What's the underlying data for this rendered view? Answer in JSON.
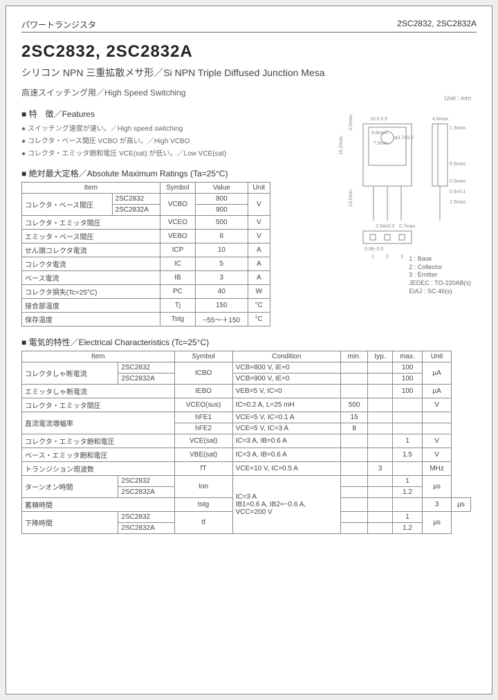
{
  "header": {
    "left": "パワートランジスタ",
    "right": "2SC2832, 2SC2832A"
  },
  "title": "2SC2832, 2SC2832A",
  "subtitle": "シリコン NPN 三重拡散メサ形／Si NPN Triple Diffused Junction Mesa",
  "application": "高速スイッチング用／High Speed Switching",
  "unit_note": "Unit : mm",
  "features_head": "特　徴／Features",
  "features": [
    "スイッチング速度が速い。／High speed switching",
    "コレクタ・ベース間圧 VCBO が高い。／High VCBO",
    "コレクタ・エミッタ飽和電圧 VCE(sat) が低い。／Low VCE(sat)"
  ],
  "ratings_head": "絶対最大定格／Absolute Maximum Ratings (Ta=25°C)",
  "ratings": {
    "cols": [
      "Item",
      "Symbol",
      "Value",
      "Unit"
    ],
    "rows": [
      {
        "item": "コレクタ・ベース間圧",
        "sub": "2SC2832",
        "symbol": "VCBO",
        "value": "800",
        "unit": "V",
        "span_item": 2,
        "span_symbol": 2,
        "span_unit": 2
      },
      {
        "item": "",
        "sub": "2SC2832A",
        "symbol": "",
        "value": "900",
        "unit": ""
      },
      {
        "item": "コレクタ・エミッタ間圧",
        "sub": "",
        "symbol": "VCEO",
        "value": "500",
        "unit": "V"
      },
      {
        "item": "エミッタ・ベース間圧",
        "sub": "",
        "symbol": "VEBO",
        "value": "8",
        "unit": "V"
      },
      {
        "item": "せん頭コレクタ電流",
        "sub": "",
        "symbol": "ICP",
        "value": "10",
        "unit": "A"
      },
      {
        "item": "コレクタ電流",
        "sub": "",
        "symbol": "IC",
        "value": "5",
        "unit": "A"
      },
      {
        "item": "ベース電流",
        "sub": "",
        "symbol": "IB",
        "value": "3",
        "unit": "A"
      },
      {
        "item": "コレクタ損失(Tc=25°C)",
        "sub": "",
        "symbol": "PC",
        "value": "40",
        "unit": "W"
      },
      {
        "item": "接合部温度",
        "sub": "",
        "symbol": "Tj",
        "value": "150",
        "unit": "°C"
      },
      {
        "item": "保存温度",
        "sub": "",
        "symbol": "Tstg",
        "value": "−55〜＋150",
        "unit": "°C"
      }
    ]
  },
  "elec_head": "電気的特性／Electrical Characteristics (Tc=25°C)",
  "elec": {
    "cols": [
      "Item",
      "Symbol",
      "Condition",
      "min.",
      "typ.",
      "max.",
      "Unit"
    ],
    "rows": [
      {
        "item": "コレクタしゃ断電流",
        "sub": "2SC2832",
        "symbol": "ICBO",
        "cond": "VCB=800 V, IE=0",
        "min": "",
        "typ": "",
        "max": "100",
        "unit": "µA",
        "span_item": 2,
        "span_symbol": 2,
        "span_unit": 2
      },
      {
        "item": "",
        "sub": "2SC2832A",
        "symbol": "",
        "cond": "VCB=900 V, IE=0",
        "min": "",
        "typ": "",
        "max": "100",
        "unit": ""
      },
      {
        "item": "エミッタしゃ断電流",
        "sub": "",
        "symbol": "IEBO",
        "cond": "VEB=5 V, IC=0",
        "min": "",
        "typ": "",
        "max": "100",
        "unit": "µA"
      },
      {
        "item": "コレクタ・エミッタ間圧",
        "sub": "",
        "symbol": "VCEO(sus)",
        "cond": "IC=0.2 A, L=25 mH",
        "min": "500",
        "typ": "",
        "max": "",
        "unit": "V"
      },
      {
        "item": "直流電流増幅率",
        "sub": "",
        "symbol": "hFE1",
        "cond": "VCE=5 V, IC=0.1 A",
        "min": "15",
        "typ": "",
        "max": "",
        "unit": "",
        "span_item": 2
      },
      {
        "item": "",
        "sub": "",
        "symbol": "hFE2",
        "cond": "VCE=5 V, IC=3 A",
        "min": "8",
        "typ": "",
        "max": "",
        "unit": ""
      },
      {
        "item": "コレクタ・エミッタ飽和電圧",
        "sub": "",
        "symbol": "VCE(sat)",
        "cond": "IC=3 A, IB=0.6 A",
        "min": "",
        "typ": "",
        "max": "1",
        "unit": "V"
      },
      {
        "item": "ベース・エミッタ飽和電圧",
        "sub": "",
        "symbol": "VBE(sat)",
        "cond": "IC=3 A, IB=0.6 A",
        "min": "",
        "typ": "",
        "max": "1.5",
        "unit": "V"
      },
      {
        "item": "トランジション周波数",
        "sub": "",
        "symbol": "fT",
        "cond": "VCE=10 V, IC=0.5 A",
        "min": "",
        "typ": "3",
        "max": "",
        "unit": "MHz"
      },
      {
        "item": "ターンオン時間",
        "sub": "2SC2832",
        "symbol": "ton",
        "cond": "IC=3 A\nIB1=0.6 A, IB2=−0.6 A,\nVCC=200 V",
        "min": "",
        "typ": "",
        "max": "1",
        "unit": "µs",
        "span_item": 2,
        "span_symbol": 2,
        "span_cond": 5,
        "span_unit": 2
      },
      {
        "item": "",
        "sub": "2SC2832A",
        "symbol": "",
        "cond": "",
        "min": "",
        "typ": "",
        "max": "1.2",
        "unit": ""
      },
      {
        "item": "蓄積時間",
        "sub": "",
        "symbol": "tstg",
        "cond": "",
        "min": "",
        "typ": "",
        "max": "3",
        "unit": "µs"
      },
      {
        "item": "下降時間",
        "sub": "2SC2832",
        "symbol": "tf",
        "cond": "",
        "min": "",
        "typ": "",
        "max": "1",
        "unit": "µs",
        "span_item": 2,
        "span_symbol": 2,
        "span_unit": 2
      },
      {
        "item": "",
        "sub": "2SC2832A",
        "symbol": "",
        "cond": "",
        "min": "",
        "typ": "",
        "max": "1.2",
        "unit": ""
      }
    ]
  },
  "package": {
    "dims": {
      "body_w": "10.5",
      "body_w_tol": "0.5",
      "tab_w": "9.8max.",
      "inner_w": "7.6min.",
      "body_h": "15.2max.",
      "tab_h": "3.0max.",
      "lead_l": "13.0min.",
      "hole": "φ3.7±0.2",
      "pitch": "2.54±0.3",
      "lead_w": "0.7max.",
      "thick": "4.6max.",
      "metal": "1.3max.",
      "lead_t_a": "0.8±0.1",
      "lead_t_b": "0.5max.",
      "slot": "1.5max.",
      "body_d": "6.5max.",
      "pad": "5.08−0.5"
    },
    "pins": [
      "1 : Base",
      "2 : Collector",
      "3 : Emitter"
    ],
    "std": [
      "JEDEC : TO-220AB(s)",
      "EIAJ : SC-46(s)"
    ]
  }
}
